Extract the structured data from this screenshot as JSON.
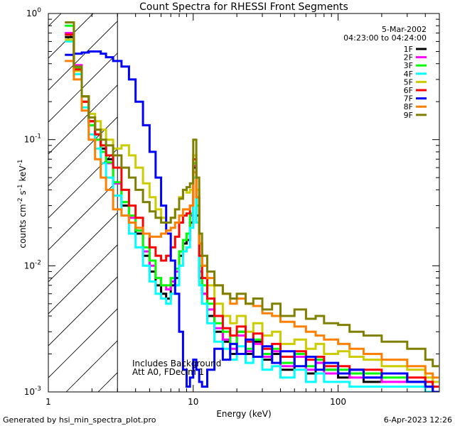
{
  "chart_data": {
    "type": "line",
    "title": "Count Spectra for RHESSI Front Segments",
    "xlabel": "Energy (keV)",
    "ylabel_parts": [
      "counts cm",
      "-2",
      " s",
      "-1",
      " keV",
      "-1"
    ],
    "x_scale": "log",
    "y_scale": "log",
    "xlim": [
      1,
      500
    ],
    "ylim": [
      0.001,
      1.0
    ],
    "x_major_ticks": [
      {
        "value": 1,
        "label": "1"
      },
      {
        "value": 10,
        "label": "10"
      },
      {
        "value": 100,
        "label": "100"
      }
    ],
    "y_major_ticks": [
      {
        "value": 1,
        "label": "10",
        "exp": "0"
      },
      {
        "value": 0.1,
        "label": "10",
        "exp": "-1"
      },
      {
        "value": 0.01,
        "label": "10",
        "exp": "-2"
      },
      {
        "value": 0.001,
        "label": "10",
        "exp": "-3"
      }
    ],
    "attenuator_hatch_max_kev": 3.0,
    "date": "5-Mar-2002",
    "time_range": "04:23:00 to 04:24:00",
    "annotations": [
      "Includes Background",
      "Att A0, FDecim 1"
    ],
    "footer_left": "Generated by hsi_min_spectra_plot.pro",
    "footer_right": "6-Apr-2023 12:26",
    "series": [
      {
        "name": "1F",
        "color": "#000000",
        "x": [
          1.3,
          1.5,
          1.7,
          1.9,
          2.1,
          2.3,
          2.5,
          2.8,
          3.2,
          3.6,
          4.0,
          4.5,
          5.0,
          5.5,
          6.0,
          6.5,
          7.0,
          7.5,
          8.0,
          8.5,
          9.0,
          9.5,
          10.0,
          10.5,
          11.0,
          11.5,
          12.5,
          14,
          16,
          18,
          20,
          23,
          26,
          30,
          35,
          40,
          50,
          60,
          70,
          80,
          100,
          120,
          150,
          200,
          300,
          400,
          450
        ],
        "y": [
          0.65,
          0.38,
          0.22,
          0.14,
          0.11,
          0.085,
          0.07,
          0.045,
          0.03,
          0.022,
          0.018,
          0.012,
          0.009,
          0.007,
          0.006,
          0.0055,
          0.007,
          0.008,
          0.012,
          0.015,
          0.016,
          0.022,
          0.06,
          0.025,
          0.008,
          0.006,
          0.004,
          0.003,
          0.0025,
          0.002,
          0.003,
          0.002,
          0.0025,
          0.0018,
          0.002,
          0.0015,
          0.002,
          0.0014,
          0.0018,
          0.0015,
          0.0013,
          0.0015,
          0.0012,
          0.0014,
          0.0012,
          0.0011,
          0.001
        ]
      },
      {
        "name": "2F",
        "color": "#ff00ff",
        "x": [
          1.3,
          1.5,
          1.7,
          1.9,
          2.1,
          2.3,
          2.5,
          2.8,
          3.2,
          3.6,
          4.0,
          4.5,
          5.0,
          5.5,
          6.0,
          6.5,
          7.0,
          7.5,
          8.0,
          8.5,
          9.0,
          9.5,
          10.0,
          10.5,
          11.0,
          11.5,
          12.5,
          14,
          16,
          18,
          20,
          23,
          26,
          30,
          35,
          40,
          50,
          60,
          70,
          80,
          100,
          120,
          150,
          200,
          300,
          400,
          450
        ],
        "y": [
          0.7,
          0.39,
          0.2,
          0.13,
          0.1,
          0.08,
          0.065,
          0.045,
          0.032,
          0.024,
          0.019,
          0.013,
          0.01,
          0.008,
          0.007,
          0.0065,
          0.0075,
          0.009,
          0.013,
          0.016,
          0.018,
          0.025,
          0.062,
          0.03,
          0.009,
          0.006,
          0.0045,
          0.0032,
          0.0026,
          0.0022,
          0.0028,
          0.0021,
          0.0024,
          0.0019,
          0.0021,
          0.0016,
          0.0019,
          0.0015,
          0.0017,
          0.0014,
          0.0014,
          0.0013,
          0.0013,
          0.0012,
          0.0012,
          0.0011,
          0.001
        ]
      },
      {
        "name": "3F",
        "color": "#00ff00",
        "x": [
          1.3,
          1.5,
          1.7,
          1.9,
          2.1,
          2.3,
          2.5,
          2.8,
          3.2,
          3.6,
          4.0,
          4.5,
          5.0,
          5.5,
          6.0,
          6.5,
          7.0,
          7.5,
          8.0,
          8.5,
          9.0,
          9.5,
          10.0,
          10.5,
          11.0,
          11.5,
          12.5,
          14,
          16,
          18,
          20,
          23,
          26,
          30,
          35,
          40,
          50,
          60,
          70,
          80,
          100,
          120,
          150,
          200,
          300,
          400,
          450
        ],
        "y": [
          0.8,
          0.37,
          0.2,
          0.13,
          0.1,
          0.08,
          0.066,
          0.046,
          0.032,
          0.025,
          0.019,
          0.014,
          0.011,
          0.008,
          0.007,
          0.007,
          0.008,
          0.0095,
          0.013,
          0.016,
          0.018,
          0.026,
          0.065,
          0.03,
          0.01,
          0.007,
          0.005,
          0.0035,
          0.003,
          0.0024,
          0.003,
          0.0022,
          0.0026,
          0.002,
          0.0022,
          0.0017,
          0.002,
          0.0016,
          0.0018,
          0.0015,
          0.0015,
          0.0014,
          0.0014,
          0.0013,
          0.0012,
          0.0011,
          0.001
        ]
      },
      {
        "name": "4F",
        "color": "#00ffff",
        "x": [
          1.3,
          1.5,
          1.7,
          1.9,
          2.1,
          2.3,
          2.5,
          2.8,
          3.2,
          3.6,
          4.0,
          4.5,
          5.0,
          5.5,
          6.0,
          6.5,
          7.0,
          7.5,
          8.0,
          8.5,
          9.0,
          9.5,
          10.0,
          10.5,
          11.0,
          11.5,
          12.5,
          14,
          16,
          18,
          20,
          23,
          26,
          30,
          35,
          40,
          50,
          60,
          70,
          80,
          100,
          120,
          150,
          200,
          300,
          400,
          450
        ],
        "y": [
          0.6,
          0.33,
          0.18,
          0.11,
          0.085,
          0.065,
          0.05,
          0.036,
          0.025,
          0.018,
          0.014,
          0.01,
          0.0075,
          0.006,
          0.0055,
          0.005,
          0.006,
          0.007,
          0.01,
          0.013,
          0.014,
          0.02,
          0.05,
          0.022,
          0.007,
          0.005,
          0.0035,
          0.0025,
          0.0022,
          0.0018,
          0.0023,
          0.0017,
          0.0019,
          0.0015,
          0.0016,
          0.0013,
          0.0015,
          0.0012,
          0.0014,
          0.0012,
          0.0012,
          0.0011,
          0.0011,
          0.0011,
          0.0011,
          0.001,
          0.001
        ]
      },
      {
        "name": "5F",
        "color": "#cccc00",
        "x": [
          1.3,
          1.5,
          1.7,
          1.9,
          2.1,
          2.3,
          2.5,
          2.8,
          3.2,
          3.6,
          4.0,
          4.5,
          5.0,
          5.5,
          6.0,
          6.5,
          7.0,
          7.5,
          8.0,
          8.5,
          9.0,
          9.5,
          10.0,
          10.5,
          11.0,
          11.5,
          12.5,
          14,
          16,
          18,
          20,
          23,
          26,
          30,
          35,
          40,
          50,
          60,
          70,
          80,
          100,
          120,
          150,
          200,
          300,
          400,
          450
        ],
        "y": [
          0.62,
          0.35,
          0.22,
          0.16,
          0.14,
          0.12,
          0.1,
          0.085,
          0.09,
          0.075,
          0.06,
          0.045,
          0.035,
          0.028,
          0.024,
          0.022,
          0.024,
          0.028,
          0.035,
          0.04,
          0.038,
          0.04,
          0.075,
          0.04,
          0.015,
          0.01,
          0.007,
          0.005,
          0.004,
          0.0035,
          0.004,
          0.003,
          0.0035,
          0.0028,
          0.003,
          0.0024,
          0.0026,
          0.0022,
          0.0024,
          0.002,
          0.0021,
          0.0019,
          0.0018,
          0.0016,
          0.0015,
          0.0013,
          0.0012
        ]
      },
      {
        "name": "6F",
        "color": "#ff0000",
        "x": [
          1.3,
          1.5,
          1.7,
          1.9,
          2.1,
          2.3,
          2.5,
          2.8,
          3.2,
          3.6,
          4.0,
          4.5,
          5.0,
          5.5,
          6.0,
          6.5,
          7.0,
          7.5,
          8.0,
          8.5,
          9.0,
          9.5,
          10.0,
          10.5,
          11.0,
          11.5,
          12.5,
          14,
          16,
          18,
          20,
          23,
          26,
          30,
          35,
          40,
          50,
          60,
          70,
          80,
          100,
          120,
          150,
          200,
          300,
          400,
          450
        ],
        "y": [
          0.68,
          0.36,
          0.2,
          0.14,
          0.11,
          0.09,
          0.075,
          0.06,
          0.04,
          0.03,
          0.024,
          0.018,
          0.014,
          0.012,
          0.011,
          0.012,
          0.014,
          0.017,
          0.022,
          0.025,
          0.026,
          0.03,
          0.07,
          0.035,
          0.012,
          0.008,
          0.0055,
          0.004,
          0.0032,
          0.0028,
          0.0033,
          0.0025,
          0.0029,
          0.0022,
          0.0024,
          0.0019,
          0.0021,
          0.0018,
          0.0019,
          0.0016,
          0.0016,
          0.0015,
          0.0015,
          0.0014,
          0.0013,
          0.0012,
          0.0011
        ]
      },
      {
        "name": "7F",
        "color": "#0000ff",
        "x": [
          1.3,
          1.5,
          1.7,
          1.9,
          2.1,
          2.3,
          2.5,
          2.8,
          3.2,
          3.6,
          4.0,
          4.5,
          5.0,
          5.5,
          6.0,
          6.5,
          7.0,
          7.5,
          8.0,
          8.5,
          9.0,
          9.5,
          10.0,
          10.5,
          11.0,
          11.5,
          12.5,
          14,
          16,
          18,
          20,
          23,
          26,
          30,
          35,
          40,
          50,
          60,
          70,
          80,
          100,
          120,
          150,
          200,
          300,
          400,
          450
        ],
        "y": [
          0.47,
          0.48,
          0.49,
          0.5,
          0.5,
          0.48,
          0.45,
          0.42,
          0.38,
          0.3,
          0.2,
          0.13,
          0.08,
          0.05,
          0.03,
          0.018,
          0.011,
          0.006,
          0.003,
          0.0015,
          0.0011,
          0.0013,
          0.0018,
          0.0015,
          0.0012,
          0.0011,
          0.0015,
          0.0022,
          0.0018,
          0.0024,
          0.002,
          0.0026,
          0.0019,
          0.0023,
          0.0017,
          0.0021,
          0.0016,
          0.0019,
          0.0015,
          0.0017,
          0.0014,
          0.0015,
          0.0013,
          0.0014,
          0.0012,
          0.0011,
          0.001
        ]
      },
      {
        "name": "8F",
        "color": "#ff8000",
        "x": [
          1.3,
          1.5,
          1.7,
          1.9,
          2.1,
          2.3,
          2.5,
          2.8,
          3.2,
          3.6,
          4.0,
          4.5,
          5.0,
          5.5,
          6.0,
          6.5,
          7.0,
          7.5,
          8.0,
          8.5,
          9.0,
          9.5,
          10.0,
          10.5,
          11.0,
          11.5,
          12.5,
          14,
          16,
          18,
          20,
          23,
          26,
          30,
          35,
          40,
          50,
          60,
          70,
          80,
          100,
          120,
          150,
          200,
          300,
          400,
          450
        ],
        "y": [
          0.42,
          0.3,
          0.17,
          0.1,
          0.07,
          0.05,
          0.04,
          0.028,
          0.025,
          0.022,
          0.02,
          0.018,
          0.017,
          0.017,
          0.018,
          0.019,
          0.02,
          0.022,
          0.025,
          0.028,
          0.028,
          0.03,
          0.055,
          0.035,
          0.015,
          0.01,
          0.008,
          0.007,
          0.006,
          0.005,
          0.0055,
          0.005,
          0.0048,
          0.0042,
          0.004,
          0.0036,
          0.0033,
          0.003,
          0.0028,
          0.0026,
          0.0024,
          0.0022,
          0.002,
          0.0018,
          0.0016,
          0.0014,
          0.0013
        ]
      },
      {
        "name": "9F",
        "color": "#808000",
        "x": [
          1.3,
          1.5,
          1.7,
          1.9,
          2.1,
          2.3,
          2.5,
          2.8,
          3.2,
          3.6,
          4.0,
          4.5,
          5.0,
          5.5,
          6.0,
          6.5,
          7.0,
          7.5,
          8.0,
          8.5,
          9.0,
          9.5,
          10.0,
          10.5,
          11.0,
          11.5,
          12.5,
          14,
          16,
          18,
          20,
          23,
          26,
          30,
          35,
          40,
          50,
          60,
          70,
          80,
          100,
          120,
          150,
          200,
          300,
          400,
          450
        ],
        "y": [
          0.85,
          0.38,
          0.22,
          0.15,
          0.12,
          0.1,
          0.09,
          0.075,
          0.06,
          0.05,
          0.04,
          0.032,
          0.027,
          0.024,
          0.022,
          0.022,
          0.024,
          0.028,
          0.034,
          0.04,
          0.042,
          0.045,
          0.1,
          0.05,
          0.018,
          0.012,
          0.009,
          0.007,
          0.006,
          0.0055,
          0.006,
          0.005,
          0.0055,
          0.0045,
          0.005,
          0.004,
          0.0045,
          0.0038,
          0.004,
          0.0035,
          0.0034,
          0.003,
          0.0028,
          0.0025,
          0.0022,
          0.0018,
          0.0016
        ]
      }
    ]
  }
}
